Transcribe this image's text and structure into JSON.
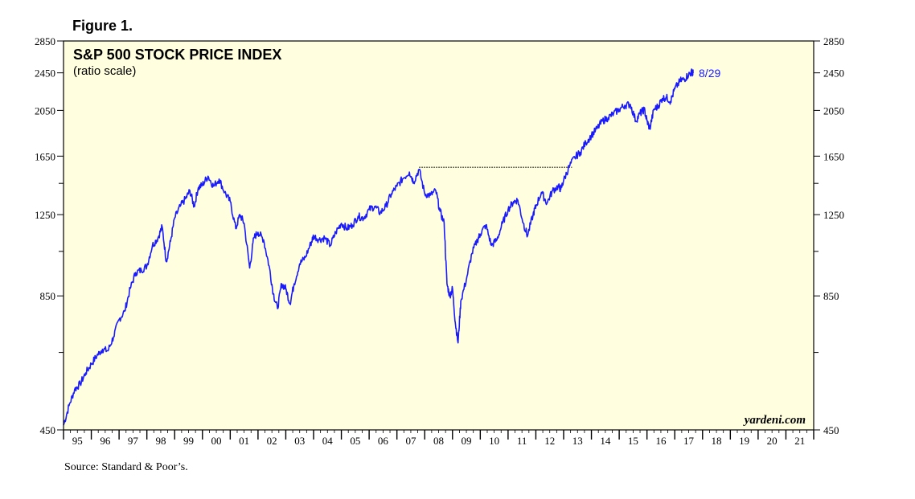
{
  "figure_label": "Figure 1.",
  "source": "Source: Standard & Poor’s.",
  "colors": {
    "plot_bg": "#ffffe0",
    "line": "#1a1aff",
    "frame": "#000000"
  },
  "chart_data": {
    "type": "line",
    "title": "S&P 500 STOCK PRICE INDEX",
    "subtitle": "(ratio scale)",
    "y_scale": "log",
    "ylim": [
      450,
      2850
    ],
    "y_ticks_labeled": [
      450,
      850,
      1250,
      1650,
      2050,
      2450,
      2850
    ],
    "y_ticks_minor": [
      650,
      1050,
      1450
    ],
    "xlim": [
      1995,
      2022
    ],
    "x_tick_labels": [
      "95",
      "96",
      "97",
      "98",
      "99",
      "00",
      "01",
      "02",
      "03",
      "04",
      "05",
      "06",
      "07",
      "08",
      "09",
      "10",
      "11",
      "12",
      "13",
      "14",
      "15",
      "16",
      "17",
      "18",
      "19",
      "20",
      "21"
    ],
    "end_label": "8/29",
    "watermark": "yardeni.com",
    "reference_line": {
      "y": 1565,
      "x_start": 2007.8,
      "x_end": 2013.3,
      "style": "dotted"
    },
    "series": [
      {
        "points": [
          [
            1995.0,
            460
          ],
          [
            1995.2,
            505
          ],
          [
            1995.4,
            545
          ],
          [
            1995.6,
            560
          ],
          [
            1995.8,
            590
          ],
          [
            1996.0,
            615
          ],
          [
            1996.2,
            640
          ],
          [
            1996.4,
            660
          ],
          [
            1996.6,
            655
          ],
          [
            1996.8,
            700
          ],
          [
            1997.0,
            760
          ],
          [
            1997.2,
            790
          ],
          [
            1997.4,
            880
          ],
          [
            1997.6,
            950
          ],
          [
            1997.8,
            960
          ],
          [
            1998.0,
            980
          ],
          [
            1998.2,
            1080
          ],
          [
            1998.4,
            1120
          ],
          [
            1998.55,
            1180
          ],
          [
            1998.7,
            1000
          ],
          [
            1998.85,
            1100
          ],
          [
            1999.0,
            1230
          ],
          [
            1999.2,
            1300
          ],
          [
            1999.4,
            1350
          ],
          [
            1999.55,
            1400
          ],
          [
            1999.7,
            1300
          ],
          [
            1999.85,
            1420
          ],
          [
            2000.0,
            1440
          ],
          [
            2000.2,
            1500
          ],
          [
            2000.4,
            1430
          ],
          [
            2000.6,
            1480
          ],
          [
            2000.8,
            1390
          ],
          [
            2001.0,
            1330
          ],
          [
            2001.2,
            1170
          ],
          [
            2001.35,
            1250
          ],
          [
            2001.5,
            1200
          ],
          [
            2001.7,
            970
          ],
          [
            2001.85,
            1120
          ],
          [
            2002.0,
            1150
          ],
          [
            2002.2,
            1110
          ],
          [
            2002.4,
            980
          ],
          [
            2002.55,
            860
          ],
          [
            2002.7,
            800
          ],
          [
            2002.85,
            900
          ],
          [
            2003.0,
            880
          ],
          [
            2003.15,
            820
          ],
          [
            2003.3,
            900
          ],
          [
            2003.5,
            990
          ],
          [
            2003.7,
            1020
          ],
          [
            2003.9,
            1090
          ],
          [
            2004.0,
            1130
          ],
          [
            2004.2,
            1110
          ],
          [
            2004.4,
            1120
          ],
          [
            2004.6,
            1080
          ],
          [
            2004.8,
            1150
          ],
          [
            2005.0,
            1200
          ],
          [
            2005.2,
            1170
          ],
          [
            2005.4,
            1190
          ],
          [
            2005.6,
            1240
          ],
          [
            2005.8,
            1230
          ],
          [
            2006.0,
            1280
          ],
          [
            2006.2,
            1300
          ],
          [
            2006.4,
            1260
          ],
          [
            2006.6,
            1300
          ],
          [
            2006.8,
            1380
          ],
          [
            2007.0,
            1430
          ],
          [
            2007.2,
            1480
          ],
          [
            2007.45,
            1530
          ],
          [
            2007.6,
            1460
          ],
          [
            2007.8,
            1550
          ],
          [
            2008.0,
            1380
          ],
          [
            2008.2,
            1370
          ],
          [
            2008.4,
            1400
          ],
          [
            2008.55,
            1270
          ],
          [
            2008.7,
            1200
          ],
          [
            2008.8,
            900
          ],
          [
            2008.9,
            850
          ],
          [
            2009.0,
            880
          ],
          [
            2009.1,
            750
          ],
          [
            2009.2,
            680
          ],
          [
            2009.3,
            830
          ],
          [
            2009.5,
            920
          ],
          [
            2009.7,
            1040
          ],
          [
            2009.9,
            1110
          ],
          [
            2010.0,
            1140
          ],
          [
            2010.2,
            1190
          ],
          [
            2010.4,
            1080
          ],
          [
            2010.6,
            1110
          ],
          [
            2010.8,
            1200
          ],
          [
            2011.0,
            1280
          ],
          [
            2011.2,
            1330
          ],
          [
            2011.35,
            1340
          ],
          [
            2011.55,
            1200
          ],
          [
            2011.7,
            1130
          ],
          [
            2011.9,
            1250
          ],
          [
            2012.0,
            1300
          ],
          [
            2012.2,
            1390
          ],
          [
            2012.4,
            1320
          ],
          [
            2012.6,
            1400
          ],
          [
            2012.8,
            1430
          ],
          [
            2012.9,
            1410
          ],
          [
            2013.0,
            1470
          ],
          [
            2013.2,
            1570
          ],
          [
            2013.4,
            1640
          ],
          [
            2013.6,
            1680
          ],
          [
            2013.8,
            1760
          ],
          [
            2014.0,
            1820
          ],
          [
            2014.2,
            1880
          ],
          [
            2014.4,
            1950
          ],
          [
            2014.6,
            1980
          ],
          [
            2014.8,
            2020
          ],
          [
            2015.0,
            2060
          ],
          [
            2015.2,
            2100
          ],
          [
            2015.4,
            2110
          ],
          [
            2015.6,
            1950
          ],
          [
            2015.75,
            2020
          ],
          [
            2015.9,
            2060
          ],
          [
            2016.0,
            1950
          ],
          [
            2016.1,
            1880
          ],
          [
            2016.25,
            2060
          ],
          [
            2016.4,
            2090
          ],
          [
            2016.55,
            2170
          ],
          [
            2016.7,
            2180
          ],
          [
            2016.85,
            2140
          ],
          [
            2017.0,
            2270
          ],
          [
            2017.2,
            2360
          ],
          [
            2017.35,
            2380
          ],
          [
            2017.5,
            2430
          ],
          [
            2017.62,
            2460
          ],
          [
            2017.66,
            2445
          ]
        ]
      }
    ]
  }
}
